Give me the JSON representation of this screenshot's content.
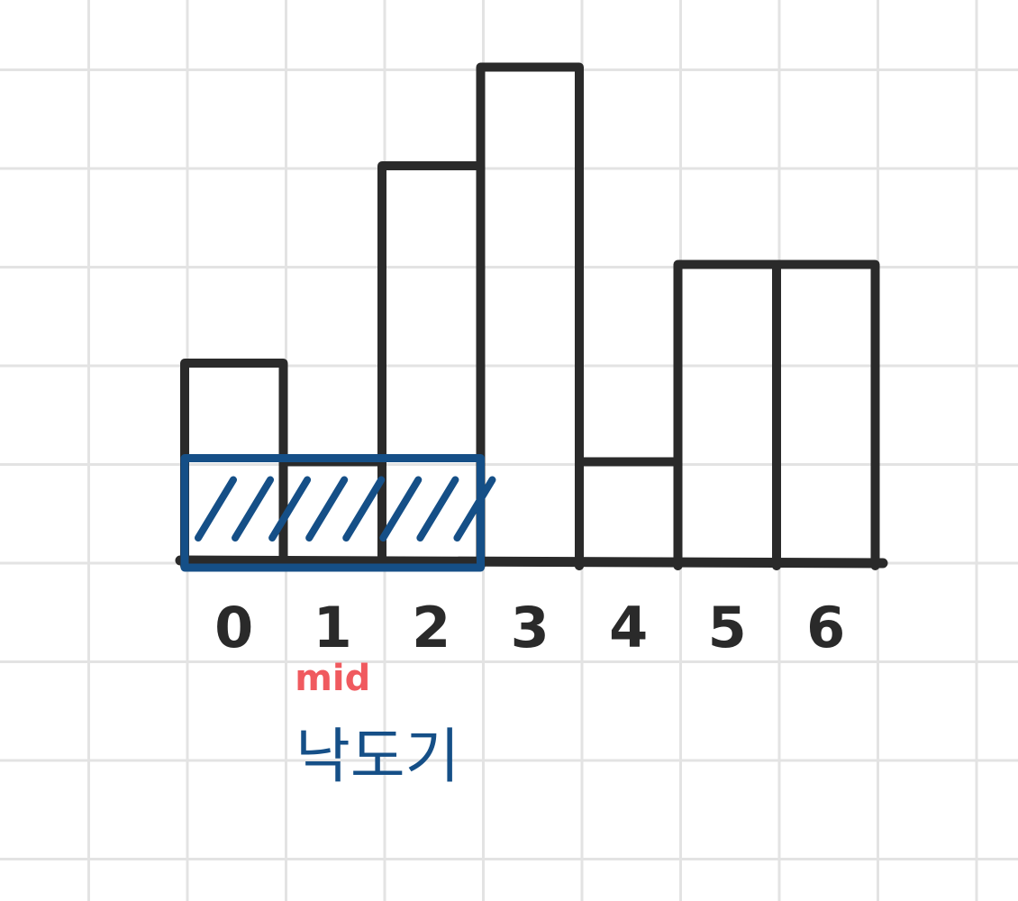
{
  "chart_data": {
    "type": "bar",
    "categories": [
      "0",
      "1",
      "2",
      "3",
      "4",
      "5",
      "6"
    ],
    "values": [
      2,
      1,
      4,
      5,
      1,
      3,
      3
    ],
    "ylim": [
      0,
      5.5
    ],
    "grid": true,
    "colors": {
      "bar_stroke": "#2a2a2a",
      "highlight": "#154f87",
      "mid_label": "#f05a5f",
      "grid": "#e3e3e3"
    },
    "highlight": {
      "from_index": 0,
      "to_index": 2,
      "height": 1
    },
    "annotations": {
      "mid_index": 1,
      "mid_label": "mid",
      "note": "낙도기"
    }
  }
}
